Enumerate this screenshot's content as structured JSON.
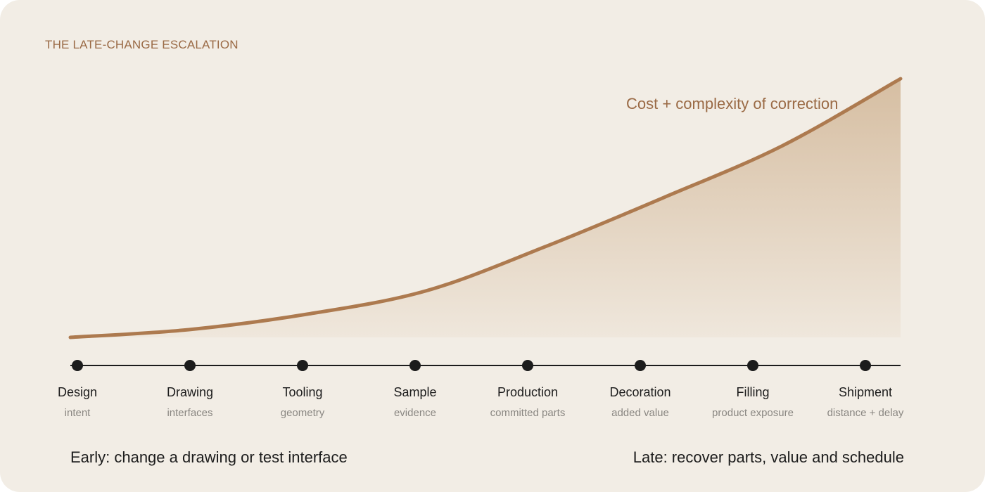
{
  "header": {
    "kicker": "THE LATE-CHANGE ESCALATION"
  },
  "curve": {
    "label": "Cost + complexity of correction",
    "stroke_color": "#ad7a4f",
    "fill_top_color": "#d6bea2",
    "fill_bottom_color": "#efe7dc",
    "relative_cost": [
      0.0,
      0.03,
      0.09,
      0.18,
      0.35,
      0.54,
      0.74,
      1.0
    ]
  },
  "stages": [
    {
      "name": "Design",
      "note": "intent"
    },
    {
      "name": "Drawing",
      "note": "interfaces"
    },
    {
      "name": "Tooling",
      "note": "geometry"
    },
    {
      "name": "Sample",
      "note": "evidence"
    },
    {
      "name": "Production",
      "note": "committed parts"
    },
    {
      "name": "Decoration",
      "note": "added value"
    },
    {
      "name": "Filling",
      "note": "product exposure"
    },
    {
      "name": "Shipment",
      "note": "distance + delay"
    }
  ],
  "captions": {
    "early": "Early: change a drawing or test interface",
    "late": "Late: recover parts, value and schedule"
  },
  "colors": {
    "background": "#f2ede5",
    "axis": "#1c1c1c",
    "node": "#1c1c1c",
    "accent_text": "#9a6a45"
  }
}
